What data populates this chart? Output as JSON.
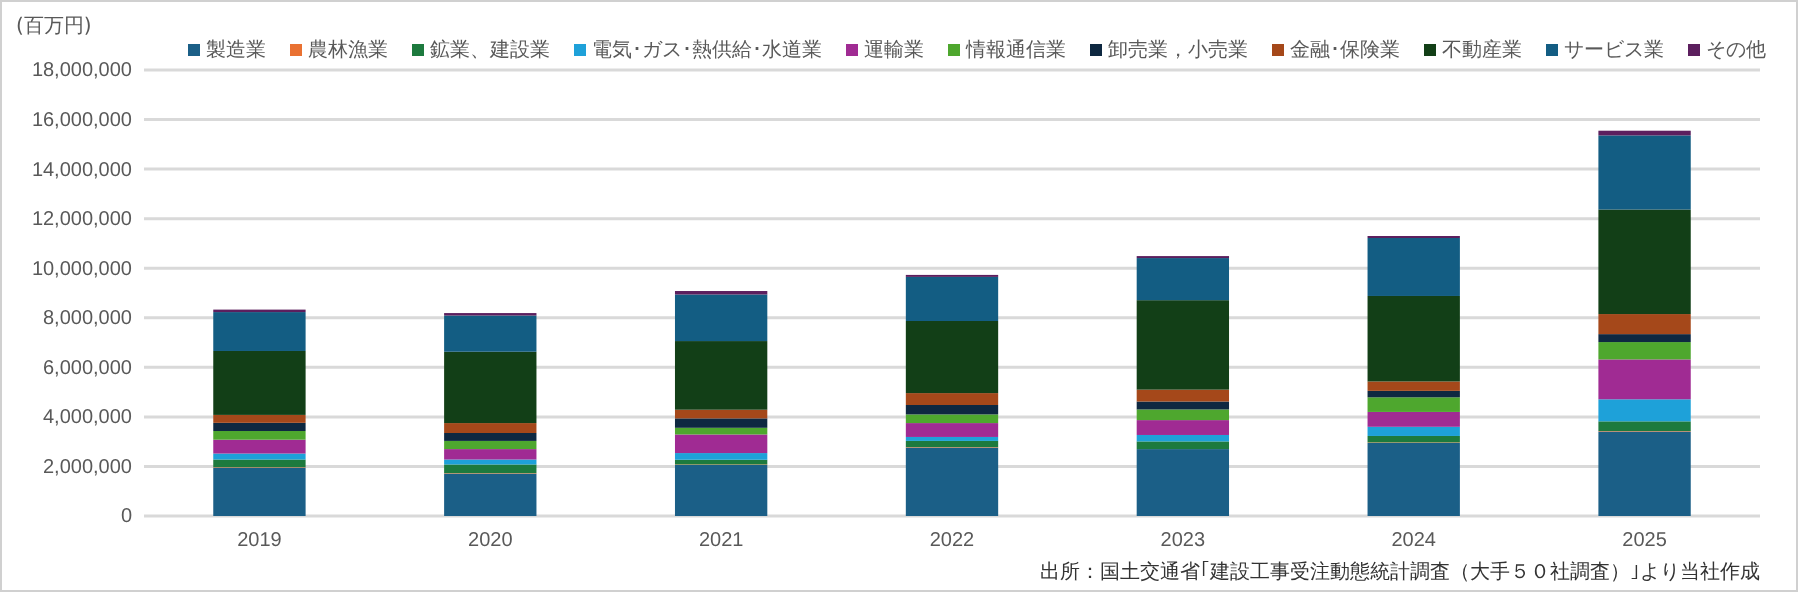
{
  "chart_data": {
    "type": "bar",
    "stacked": true,
    "ylabel": "(百万円)",
    "categories": [
      "2019",
      "2020",
      "2021",
      "2022",
      "2023",
      "2024",
      "2025"
    ],
    "series": [
      {
        "name": "製造業",
        "color": "#1b5f87",
        "values": [
          1950000,
          1710000,
          2060000,
          2760000,
          2700000,
          2950000,
          3410000
        ]
      },
      {
        "name": "農林漁業",
        "color": "#e97132",
        "values": [
          20000,
          20000,
          20000,
          20000,
          null,
          20000,
          20000
        ]
      },
      {
        "name": "鉱業、建設業",
        "color": "#1d7a3e",
        "values": [
          310000,
          350000,
          190000,
          250000,
          310000,
          260000,
          390000
        ]
      },
      {
        "name": "電気･ガス･熱供給･水道業",
        "color": "#1ea1d9",
        "values": [
          240000,
          200000,
          270000,
          160000,
          260000,
          370000,
          890000
        ]
      },
      {
        "name": "運輸業",
        "color": "#a02b93",
        "values": [
          560000,
          420000,
          750000,
          560000,
          600000,
          600000,
          1610000
        ]
      },
      {
        "name": "情報通信業",
        "color": "#4ea72e",
        "values": [
          350000,
          330000,
          270000,
          350000,
          430000,
          590000,
          700000
        ]
      },
      {
        "name": "卸売業，小売業",
        "color": "#0e2841",
        "values": [
          330000,
          320000,
          380000,
          380000,
          320000,
          260000,
          320000
        ]
      },
      {
        "name": "金融･保険業",
        "color": "#a5481a",
        "values": [
          320000,
          400000,
          350000,
          480000,
          480000,
          380000,
          810000
        ]
      },
      {
        "name": "不動産業",
        "color": "#123f17",
        "values": [
          2580000,
          2880000,
          2770000,
          2910000,
          3610000,
          3450000,
          4220000
        ]
      },
      {
        "name": "サービス業",
        "color": "#135d83",
        "values": [
          1570000,
          1460000,
          1880000,
          1780000,
          1700000,
          2340000,
          2990000
        ]
      },
      {
        "name": "その他",
        "color": "#5c1f5e",
        "values": [
          100000,
          100000,
          140000,
          80000,
          80000,
          80000,
          190000
        ]
      }
    ],
    "ylim": [
      0,
      18000000
    ],
    "yticks": [
      {
        "value": 0,
        "label": "0"
      },
      {
        "value": 2000000,
        "label": "2,000,000"
      },
      {
        "value": 4000000,
        "label": "4,000,000"
      },
      {
        "value": 6000000,
        "label": "6,000,000"
      },
      {
        "value": 8000000,
        "label": "8,000,000"
      },
      {
        "value": 10000000,
        "label": "10,000,000"
      },
      {
        "value": 12000000,
        "label": "12,000,000"
      },
      {
        "value": 14000000,
        "label": "14,000,000"
      },
      {
        "value": 16000000,
        "label": "16,000,000"
      },
      {
        "value": 18000000,
        "label": "18,000,000"
      }
    ],
    "grid": "y",
    "legend": "top",
    "annotations": [
      "出所：国土交通省｢建設工事受注動態統計調査（大手５０社調査）｣より当社作成"
    ]
  }
}
